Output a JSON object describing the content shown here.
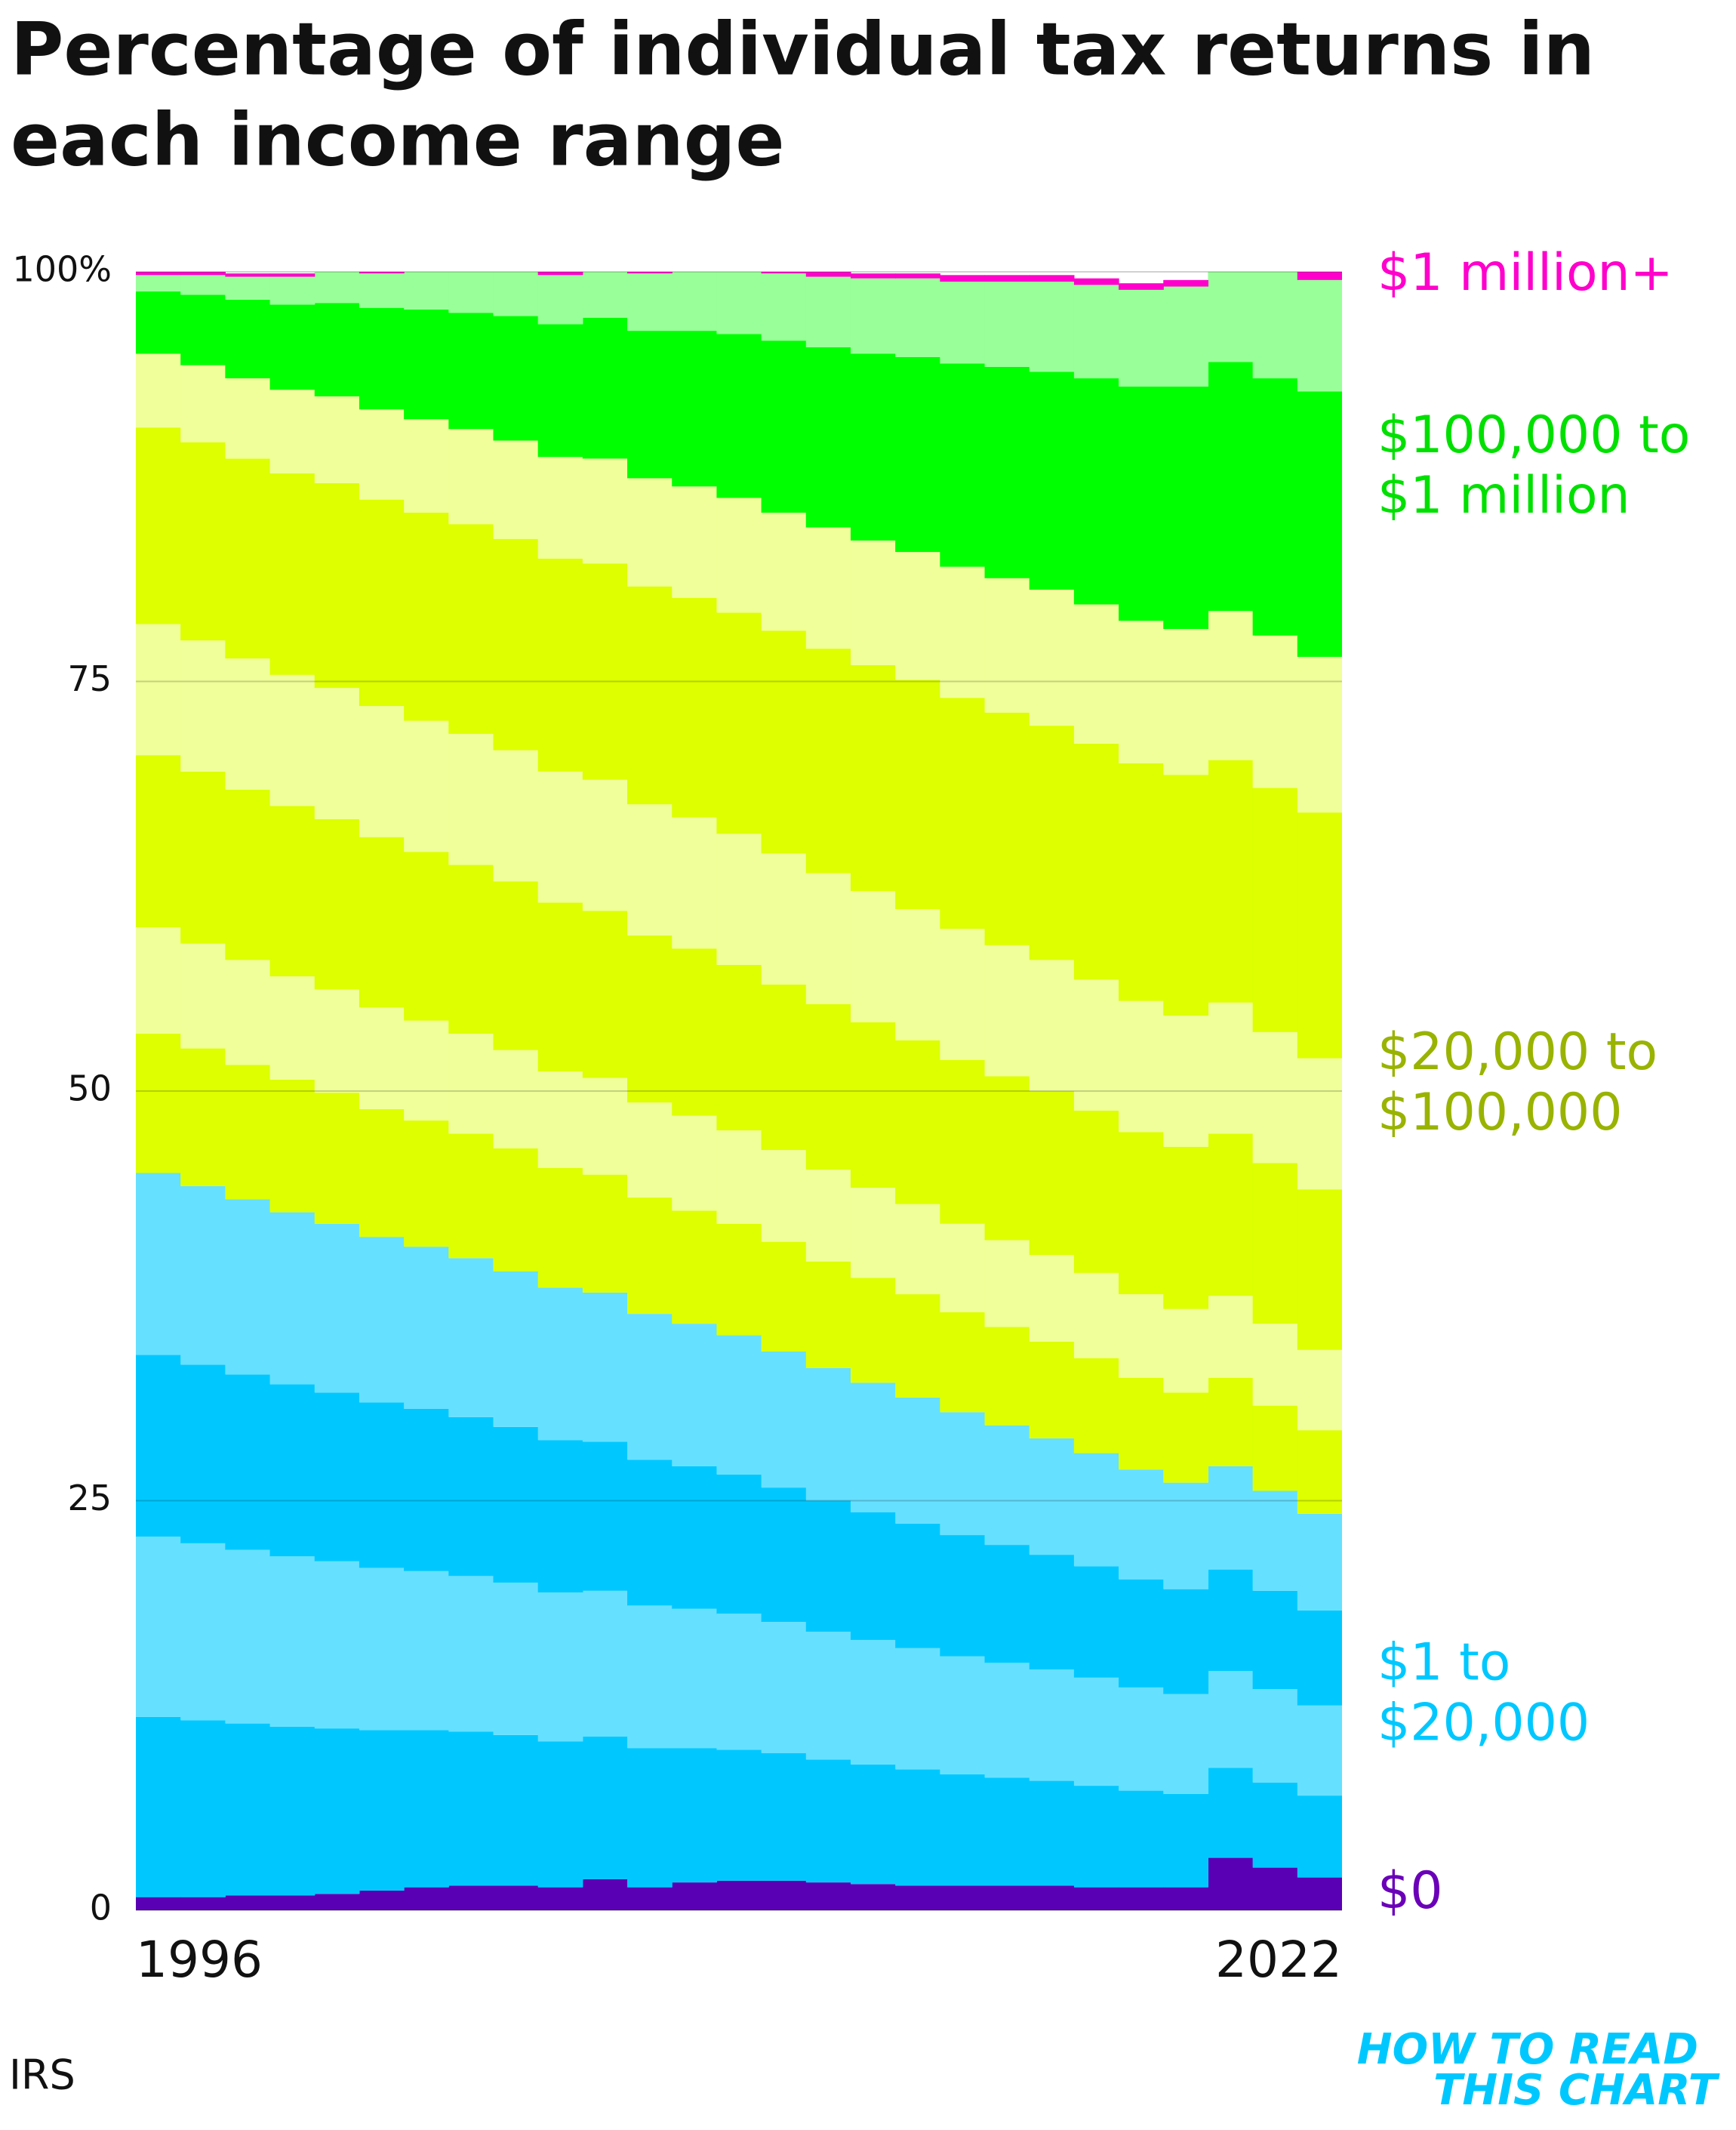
{
  "chart_data": {
    "type": "stacked-step-area",
    "title": [
      "Percentage of individual tax returns in",
      "each income range"
    ],
    "source": "IRS",
    "logo": [
      "HOW TO READ",
      "THIS CHART"
    ],
    "categories": [
      "1996",
      null,
      null,
      null,
      null,
      null,
      null,
      null,
      null,
      null,
      null,
      null,
      null,
      null,
      null,
      null,
      null,
      null,
      null,
      null,
      null,
      null,
      null,
      null,
      null,
      null,
      "2022"
    ],
    "ylim": [
      0,
      100
    ],
    "yticks": [
      0,
      25,
      50,
      75,
      {
        "value": 100,
        "label": "100%"
      }
    ],
    "grid": true,
    "groups": [
      {
        "label": [
          "$0"
        ],
        "color": "#6a00b8",
        "series": [
          {
            "color": "#5a00b4",
            "values": [
              0.8,
              0.8,
              0.9,
              0.9,
              1.0,
              1.2,
              1.4,
              1.5,
              1.5,
              1.4,
              1.9,
              1.4,
              1.7,
              1.8,
              1.8,
              1.7,
              1.6,
              1.5,
              1.5,
              1.5,
              1.5,
              1.4,
              1.4,
              1.4,
              3.2,
              2.6,
              2.0
            ]
          }
        ]
      },
      {
        "label": [
          "$1 to",
          "$20,000"
        ],
        "color": "#00c8ff",
        "series": [
          {
            "color": "#00c8ff",
            "values": [
              11.0,
              10.8,
              10.5,
              10.3,
              10.1,
              9.8,
              9.6,
              9.4,
              9.2,
              8.9,
              8.7,
              8.5,
              8.2,
              8.0,
              7.8,
              7.5,
              7.3,
              7.1,
              6.8,
              6.6,
              6.4,
              6.2,
              5.9,
              5.7,
              5.5,
              5.2,
              5.0
            ]
          },
          {
            "color": "#66e0ff",
            "values": [
              11.0,
              10.8,
              10.6,
              10.4,
              10.2,
              9.9,
              9.7,
              9.5,
              9.3,
              9.1,
              8.9,
              8.7,
              8.5,
              8.3,
              8.0,
              7.8,
              7.6,
              7.4,
              7.2,
              7.0,
              6.8,
              6.6,
              6.3,
              6.1,
              5.9,
              5.7,
              5.5
            ]
          },
          {
            "color": "#00c8ff",
            "values": [
              11.1,
              10.9,
              10.7,
              10.5,
              10.3,
              10.1,
              9.9,
              9.7,
              9.5,
              9.3,
              9.1,
              8.9,
              8.7,
              8.5,
              8.2,
              8.0,
              7.8,
              7.6,
              7.4,
              7.2,
              7.0,
              6.8,
              6.6,
              6.4,
              6.2,
              6.0,
              5.8
            ]
          },
          {
            "color": "#66e0ff",
            "values": [
              11.1,
              10.9,
              10.7,
              10.5,
              10.3,
              10.1,
              9.9,
              9.7,
              9.5,
              9.3,
              9.1,
              8.9,
              8.7,
              8.5,
              8.3,
              8.1,
              7.9,
              7.7,
              7.5,
              7.3,
              7.1,
              6.9,
              6.7,
              6.5,
              6.3,
              6.1,
              5.9
            ]
          }
        ]
      },
      {
        "label": [
          "$20,000 to",
          "$100,000"
        ],
        "color": "#99b300",
        "series": [
          {
            "color": "#ddff00",
            "values": [
              8.5,
              8.4,
              8.2,
              8.1,
              8.0,
              7.8,
              7.7,
              7.6,
              7.5,
              7.3,
              7.2,
              7.1,
              6.9,
              6.8,
              6.7,
              6.5,
              6.4,
              6.3,
              6.1,
              6.0,
              5.9,
              5.8,
              5.6,
              5.5,
              5.4,
              5.2,
              5.1
            ]
          },
          {
            "color": "#f0ff99",
            "values": [
              6.5,
              6.4,
              6.4,
              6.3,
              6.3,
              6.2,
              6.1,
              6.1,
              6.0,
              5.9,
              5.9,
              5.8,
              5.8,
              5.7,
              5.6,
              5.6,
              5.5,
              5.5,
              5.4,
              5.3,
              5.3,
              5.2,
              5.1,
              5.1,
              5.0,
              5.0,
              4.9
            ]
          },
          {
            "color": "#ddff00",
            "values": [
              10.5,
              10.5,
              10.4,
              10.4,
              10.4,
              10.4,
              10.3,
              10.3,
              10.3,
              10.3,
              10.2,
              10.2,
              10.2,
              10.1,
              10.1,
              10.1,
              10.1,
              10.0,
              10.0,
              10.0,
              10.0,
              9.9,
              9.9,
              9.9,
              9.9,
              9.8,
              9.8
            ]
          },
          {
            "color": "#f0ff99",
            "values": [
              8,
              8,
              8,
              8,
              8,
              8,
              8,
              8,
              8,
              8,
              8,
              8,
              8,
              8,
              8,
              8,
              8,
              8,
              8,
              8,
              8,
              8,
              8,
              8,
              8,
              8,
              8
            ]
          },
          {
            "color": "#ddff00",
            "values": [
              12.0,
              12.1,
              12.2,
              12.3,
              12.5,
              12.6,
              12.7,
              12.8,
              12.9,
              13.0,
              13.2,
              13.3,
              13.4,
              13.5,
              13.6,
              13.7,
              13.8,
              14.0,
              14.1,
              14.2,
              14.3,
              14.4,
              14.5,
              14.7,
              14.8,
              14.9,
              15.0
            ]
          },
          {
            "color": "#f0ff99",
            "values": [
              4.5,
              4.7,
              4.9,
              5.1,
              5.3,
              5.5,
              5.7,
              5.8,
              6.0,
              6.2,
              6.4,
              6.6,
              6.8,
              7.0,
              7.2,
              7.4,
              7.6,
              7.8,
              8.0,
              8.2,
              8.3,
              8.5,
              8.7,
              8.9,
              9.1,
              9.3,
              9.5
            ]
          }
        ]
      },
      {
        "label": [
          "$100,000 to",
          "$1 million"
        ],
        "color": "#00e000",
        "series": [
          {
            "color": "#00ff00",
            "values": [
              3.8,
              4.3,
              4.8,
              5.2,
              5.7,
              6.2,
              6.7,
              7.1,
              7.6,
              8.1,
              8.6,
              9.0,
              9.5,
              10.0,
              10.5,
              11.0,
              11.4,
              11.9,
              12.4,
              12.9,
              13.3,
              13.8,
              14.3,
              14.8,
              15.2,
              15.7,
              16.2
            ]
          },
          {
            "color": "#99ff99",
            "values": [
              1.0,
              1.2,
              1.4,
              1.7,
              1.9,
              2.1,
              2.3,
              2.6,
              2.8,
              3.0,
              3.2,
              3.5,
              3.7,
              3.9,
              4.1,
              4.3,
              4.6,
              4.8,
              5.0,
              5.2,
              5.5,
              5.7,
              5.9,
              6.1,
              6.4,
              6.6,
              6.8
            ]
          }
        ]
      },
      {
        "label": [
          "$1 million+"
        ],
        "color": "#ff00cc",
        "series": [
          {
            "color": "#ff00cc",
            "values": [
              0.2,
              0.2,
              0.2,
              0.2,
              0.2,
              0.2,
              0.2,
              0.2,
              0.2,
              0.3,
              0.3,
              0.3,
              0.3,
              0.3,
              0.3,
              0.3,
              0.3,
              0.3,
              0.4,
              0.4,
              0.4,
              0.4,
              0.4,
              0.4,
              0.4,
              0.5,
              0.5
            ]
          }
        ]
      }
    ]
  }
}
